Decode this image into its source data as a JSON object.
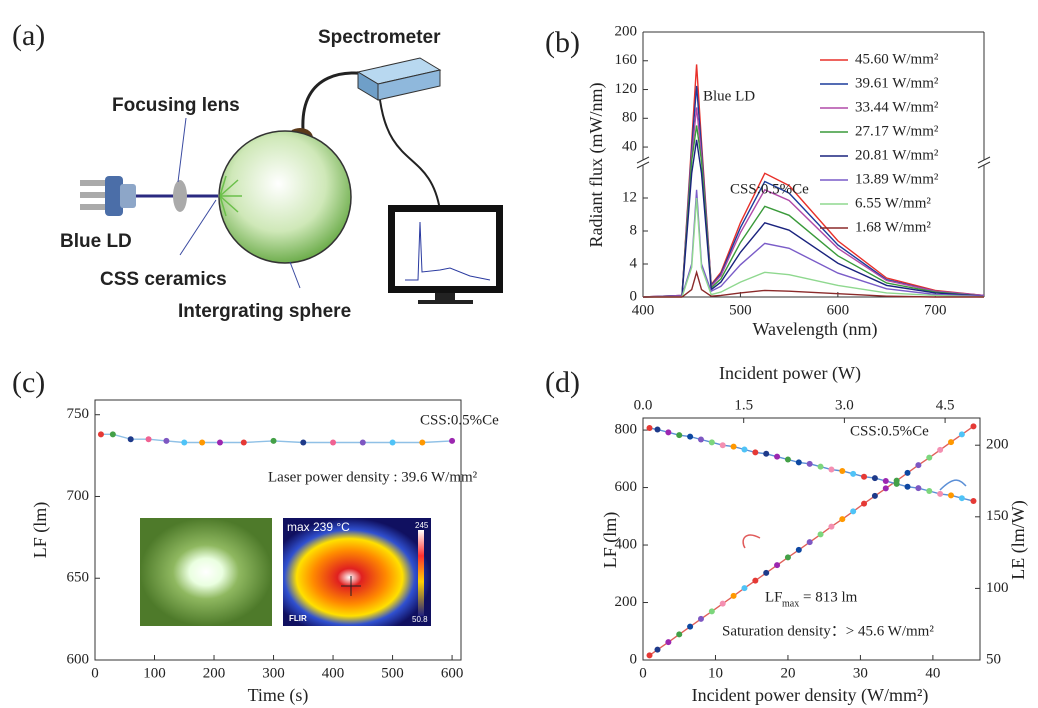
{
  "panel_a": {
    "label": "(a)",
    "labels": {
      "spectrometer": "Spectrometer",
      "focusing_lens": "Focusing lens",
      "blue_ld": "Blue LD",
      "css_ceramics": "CSS ceramics",
      "sphere": "Intergrating sphere"
    }
  },
  "chart_data": [
    {
      "panel_label": "(b)",
      "type": "line",
      "xlabel": "Wavelength (nm)",
      "ylabel": "Radiant flux (mW/nm)",
      "x": [
        400,
        440,
        450,
        455,
        460,
        470,
        480,
        500,
        525,
        550,
        600,
        650,
        700,
        750
      ],
      "xlim": [
        400,
        750
      ],
      "xticks": [
        400,
        500,
        600,
        700
      ],
      "ylim": [
        0,
        200
      ],
      "yticks": [
        0,
        4,
        8,
        12,
        40,
        80,
        120,
        160,
        200
      ],
      "axis_break": [
        16,
        22
      ],
      "annotations": [
        "Blue LD",
        "CSS:0.5%Ce"
      ],
      "series": [
        {
          "name": "45.60 W/mm²",
          "color": "#e8302a",
          "values": [
            0,
            0.2,
            47,
            155,
            47,
            1.5,
            3,
            9,
            15,
            13.5,
            6.8,
            2.3,
            0.8,
            0.2
          ]
        },
        {
          "name": "39.61 W/mm²",
          "color": "#1c3c9c",
          "values": [
            0,
            0.2,
            38,
            125,
            38,
            1.4,
            2.8,
            8.4,
            14,
            12.6,
            6.3,
            2.1,
            0.7,
            0.2
          ]
        },
        {
          "name": "33.44 W/mm²",
          "color": "#b04aa8",
          "values": [
            0,
            0.2,
            29,
            95,
            29,
            1.3,
            2.6,
            7.8,
            13,
            11.7,
            5.9,
            2,
            0.7,
            0.2
          ]
        },
        {
          "name": "27.17 W/mm²",
          "color": "#3a9a3a",
          "values": [
            0,
            0.1,
            21,
            70,
            21,
            1.1,
            2.2,
            6.6,
            11,
            9.9,
            5,
            1.7,
            0.6,
            0.1
          ]
        },
        {
          "name": "20.81 W/mm²",
          "color": "#1a237e",
          "values": [
            0,
            0.1,
            15,
            50,
            15,
            0.9,
            1.8,
            5.4,
            9,
            8.1,
            4.1,
            1.4,
            0.5,
            0.1
          ]
        },
        {
          "name": "13.89 W/mm²",
          "color": "#7a5cc8",
          "values": [
            0,
            0.1,
            4,
            13,
            4,
            0.7,
            1.3,
            3.9,
            6.5,
            5.9,
            2.9,
            1,
            0.3,
            0.1
          ]
        },
        {
          "name": "6.55  W/mm²",
          "color": "#8fd88f",
          "values": [
            0,
            0,
            3.6,
            12,
            3.6,
            0.3,
            0.6,
            1.8,
            3,
            2.7,
            1.4,
            0.5,
            0.2,
            0
          ]
        },
        {
          "name": "1.68  W/mm²",
          "color": "#8b2a2a",
          "values": [
            0,
            0,
            0.9,
            3,
            0.9,
            0.1,
            0.2,
            0.5,
            0.8,
            0.7,
            0.4,
            0.1,
            0,
            0
          ]
        }
      ]
    },
    {
      "panel_label": "(c)",
      "type": "line",
      "xlabel": "Time (s)",
      "ylabel": "LF (lm)",
      "x": [
        10,
        30,
        60,
        90,
        120,
        150,
        180,
        210,
        250,
        300,
        350,
        400,
        450,
        500,
        550,
        600
      ],
      "xlim": [
        0,
        615
      ],
      "xticks": [
        0,
        100,
        200,
        300,
        400,
        500,
        600
      ],
      "ylim": [
        600,
        759
      ],
      "yticks": [
        600,
        650,
        700,
        750
      ],
      "annotations": [
        "CSS:0.5%Ce",
        "Laser power density : 39.6 W/mm²"
      ],
      "insets": {
        "thermal_max": "max 239 °C",
        "scale_max": "245",
        "scale_min": "50.8",
        "brand": "FLIR"
      },
      "marker_colors": [
        "#e53935",
        "#43a047",
        "#1e3a8a",
        "#f06292",
        "#7e57c2",
        "#4fc3f7",
        "#ff9800",
        "#9c27b0"
      ],
      "series": [
        {
          "color": "#8fc0e6",
          "values": [
            738,
            738,
            735,
            735,
            734,
            733,
            733,
            733,
            733,
            734,
            733,
            733,
            733,
            733,
            733,
            734
          ]
        }
      ]
    },
    {
      "panel_label": "(d)",
      "type": "line",
      "xlabel": "Incident  power density (W/mm²)",
      "x2label": "Incident  power (W)",
      "ylabel": "LF (lm)",
      "y2label": "LE (lm/W)",
      "x": [
        0.9,
        2,
        3.5,
        5,
        6.5,
        8,
        9.5,
        11,
        12.5,
        14,
        15.5,
        17,
        18.5,
        20,
        21.5,
        23,
        24.5,
        26,
        27.5,
        29,
        30.5,
        32,
        33.5,
        35,
        36.5,
        38,
        39.5,
        41,
        42.5,
        44,
        45.6
      ],
      "xlim": [
        0,
        46.5
      ],
      "xticks": [
        0,
        10,
        20,
        30,
        40
      ],
      "x2lim": [
        0,
        5.02
      ],
      "x2ticks": [
        {
          "value": 0,
          "label": "0.0"
        },
        1.5,
        {
          "value": 3,
          "label": "3.0"
        },
        4.5
      ],
      "ylim": [
        0,
        842
      ],
      "yticks": [
        0,
        200,
        400,
        600,
        800
      ],
      "y2lim": [
        50,
        219
      ],
      "y2ticks": [
        50,
        100,
        150,
        200
      ],
      "annotations": [
        "CSS:0.5%Ce"
      ],
      "lf_max": {
        "base": "LF",
        "sub": "max",
        "rest": "= 813 lm"
      },
      "saturation": "Saturation density：> 45.6 W/mm²",
      "marker_colors": [
        "#e53935",
        "#1e3a8a",
        "#9c27b0",
        "#43a047",
        "#0d47a1",
        "#7e57c2",
        "#7cd67c",
        "#f48fb1",
        "#ff9800",
        "#4fc3f7"
      ],
      "series": [
        {
          "color": "#e0605a",
          "values": [
            16,
            36,
            62,
            89,
            116,
            143,
            169,
            196,
            223,
            250,
            276,
            303,
            330,
            357,
            383,
            410,
            437,
            464,
            490,
            517,
            544,
            571,
            597,
            624,
            651,
            678,
            704,
            731,
            758,
            785,
            813
          ]
        },
        {
          "color": "#5b8fd6",
          "axis": "y2",
          "values": [
            212,
            211,
            209,
            207,
            206,
            204,
            202,
            200,
            199,
            197,
            195,
            194,
            192,
            190,
            188,
            187,
            185,
            183,
            182,
            180,
            178,
            177,
            175,
            173,
            171,
            170,
            168,
            166,
            165,
            163,
            161
          ]
        }
      ]
    }
  ]
}
